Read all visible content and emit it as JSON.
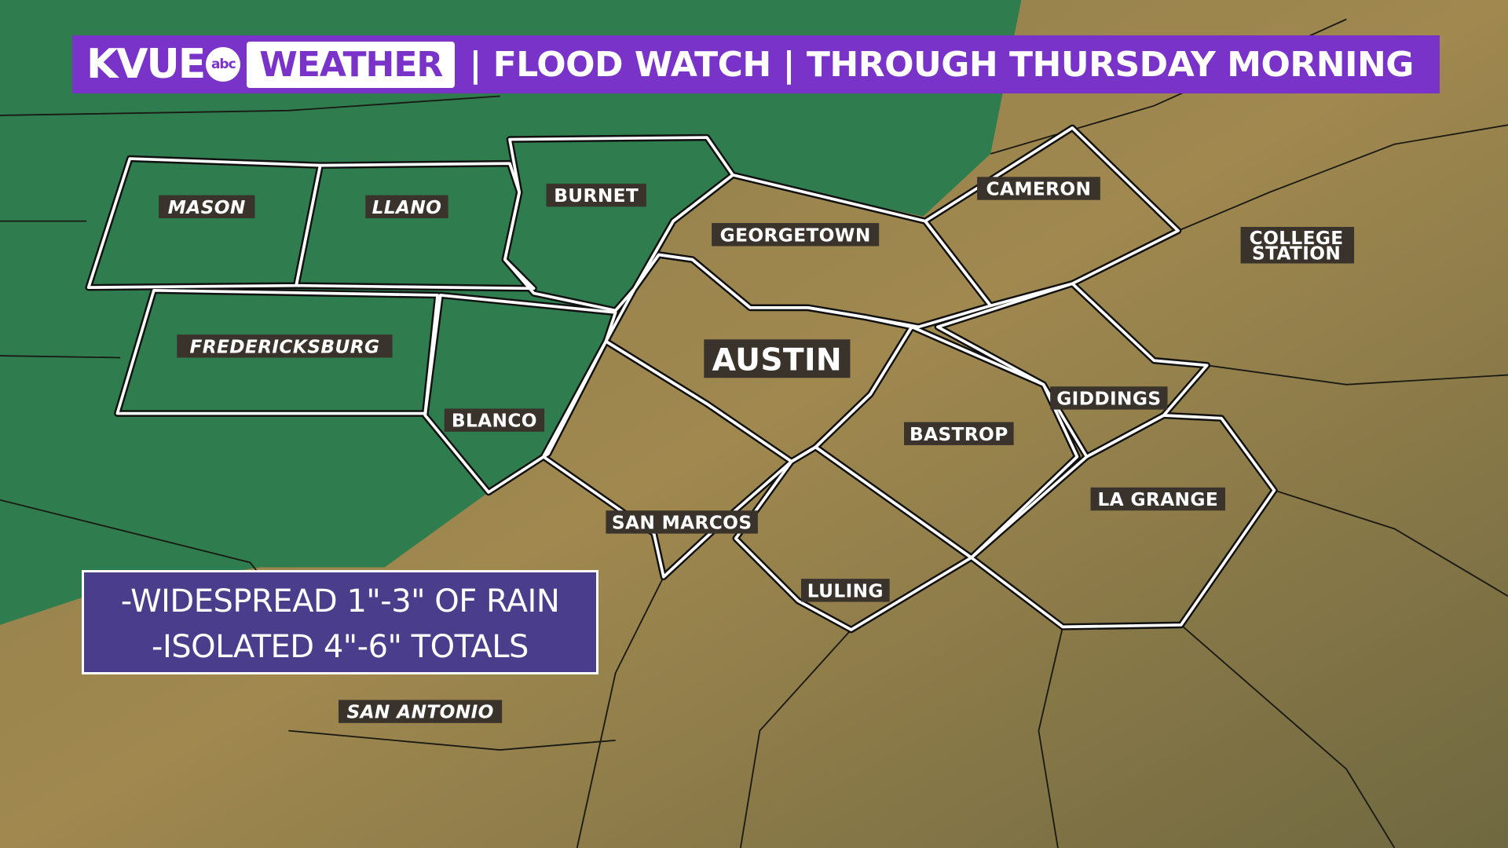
{
  "header": {
    "brand": "KVUE",
    "network_logo": "abc",
    "section": "WEATHER",
    "title": "| FLOOD WATCH | THROUGH THURSDAY MORNING"
  },
  "colors": {
    "header_purple": "#7a33c9",
    "flood_watch_green": "#2f7d4e",
    "info_box": "#4a3d8c"
  },
  "map": {
    "labels": {
      "mason": "MASON",
      "llano": "LLANO",
      "burnet": "BURNET",
      "fredericksburg": "FREDERICKSBURG",
      "blanco": "BLANCO",
      "georgetown": "GEORGETOWN",
      "cameron": "CAMERON",
      "college_station_1": "COLLEGE",
      "college_station_2": "STATION",
      "austin": "AUSTIN",
      "giddings": "GIDDINGS",
      "bastrop": "BASTROP",
      "la_grange": "LA GRANGE",
      "san_marcos": "SAN MARCOS",
      "luling": "LULING",
      "san_antonio": "SAN ANTONIO"
    }
  },
  "info": {
    "line1": "-WIDESPREAD 1\"-3\" OF RAIN",
    "line2": "-ISOLATED 4\"-6\" TOTALS"
  }
}
